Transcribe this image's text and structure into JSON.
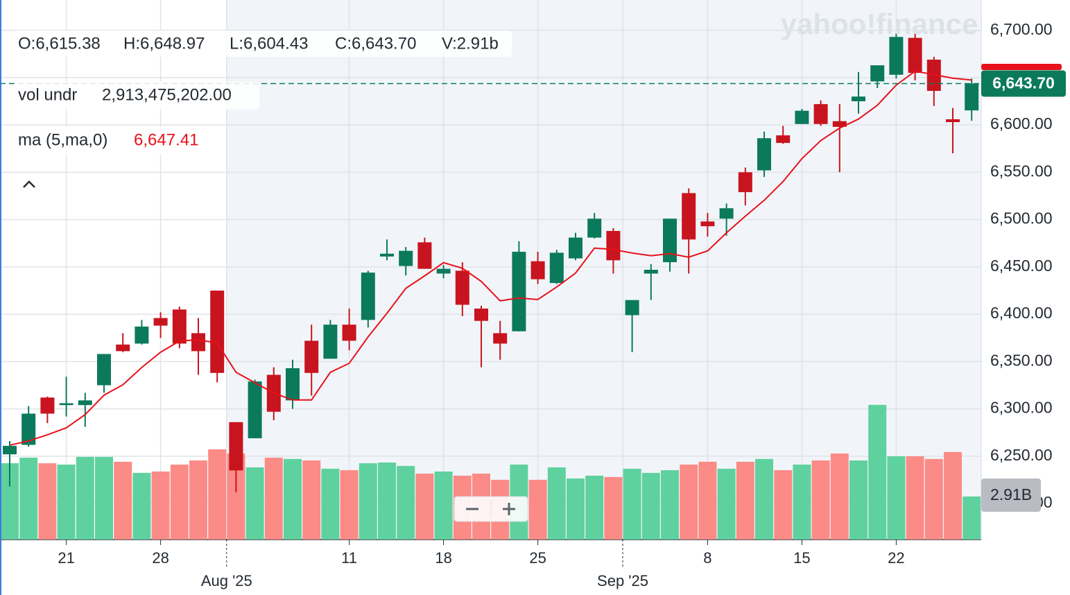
{
  "chart_data": {
    "type": "candlestick",
    "watermark": "yahoo!finance",
    "legend": {
      "ohlcv": [
        "O:6,615.38",
        "H:6,648.97",
        "L:6,604.43",
        "C:6,643.70",
        "V:2.91b"
      ],
      "vol_name": "vol undr",
      "vol_value": "2,913,475,202.00",
      "ma_name": "ma (5,ma,0)",
      "ma_value": "6,647.41"
    },
    "categories": [
      null,
      null,
      null,
      "21",
      null,
      null,
      null,
      null,
      "28",
      null,
      null,
      null,
      null,
      null,
      null,
      null,
      null,
      null,
      "11",
      null,
      null,
      null,
      null,
      "18",
      null,
      null,
      null,
      null,
      "25",
      null,
      null,
      null,
      null,
      null,
      null,
      null,
      null,
      "8",
      null,
      null,
      null,
      null,
      "15",
      null,
      null,
      null,
      null,
      "22",
      null,
      null,
      null,
      null
    ],
    "month_ticks": [
      {
        "value": 11.5,
        "label": "Aug '25"
      },
      {
        "value": 32.5,
        "label": "Sep '25"
      }
    ],
    "open": [
      6252,
      6262,
      6312,
      6304,
      6304,
      6325,
      6368,
      6369,
      6396,
      6405,
      6380,
      6425,
      6286,
      6269,
      6336,
      6309,
      6372,
      6353,
      6389,
      6394,
      6461,
      6451,
      6476,
      6443,
      6446,
      6406,
      6380,
      6382,
      6456,
      6433,
      6459,
      6481,
      6488,
      6399,
      6443,
      6455,
      6528,
      6498,
      6501,
      6550,
      6552,
      6589,
      6601,
      6622,
      6604,
      6625,
      6646,
      6653,
      6692,
      6669,
      6606,
      6615.38
    ],
    "high": [
      6266,
      6303,
      6313,
      6334,
      6317,
      6358,
      6380,
      6394,
      6402,
      6408,
      6396,
      6425,
      6286,
      6331,
      6344,
      6352,
      6389,
      6394,
      6406,
      6446,
      6479,
      6471,
      6481,
      6452,
      6455,
      6409,
      6393,
      6477,
      6466,
      6468,
      6486,
      6507,
      6491,
      6415,
      6453,
      6501,
      6533,
      6507,
      6517,
      6555,
      6593,
      6599,
      6617,
      6626,
      6622,
      6656,
      6663,
      6697,
      6698,
      6672,
      6618,
      6648.97
    ],
    "low": [
      6218,
      6260,
      6285,
      6292,
      6281,
      6317,
      6360,
      6368,
      6375,
      6364,
      6336,
      6328,
      6212,
      6269,
      6288,
      6300,
      6314,
      6353,
      6362,
      6386,
      6457,
      6441,
      6448,
      6438,
      6398,
      6344,
      6352,
      6382,
      6432,
      6432,
      6457,
      6480,
      6443,
      6360,
      6415,
      6445,
      6443,
      6482,
      6483,
      6515,
      6545,
      6580,
      6601,
      6599,
      6550,
      6612,
      6639,
      6649,
      6647,
      6620,
      6570,
      6604.43
    ],
    "close": [
      6261,
      6295,
      6295,
      6306,
      6309,
      6358,
      6361,
      6387,
      6388,
      6369,
      6361,
      6338,
      6235,
      6329,
      6297,
      6343,
      6338,
      6389,
      6372,
      6444,
      6464,
      6467,
      6448,
      6448,
      6410,
      6393,
      6369,
      6466,
      6437,
      6465,
      6481,
      6501,
      6457,
      6415,
      6447,
      6501,
      6479,
      6493,
      6512,
      6529,
      6586,
      6581,
      6615,
      6601,
      6598,
      6630,
      6663,
      6693,
      6655,
      6636,
      6603,
      6643.7
    ],
    "volume": [
      5.16,
      5.54,
      5.16,
      5.07,
      5.59,
      5.59,
      5.26,
      4.51,
      4.6,
      5.07,
      5.35,
      6.1,
      5.82,
      4.88,
      5.54,
      5.45,
      5.35,
      4.79,
      4.69,
      5.16,
      5.21,
      4.98,
      4.46,
      4.6,
      4.32,
      4.46,
      4.04,
      5.07,
      4.04,
      4.88,
      4.13,
      4.32,
      4.23,
      4.79,
      4.51,
      4.69,
      5.07,
      5.26,
      4.79,
      5.26,
      5.45,
      4.69,
      5.07,
      5.35,
      5.82,
      5.35,
      9.11,
      5.63,
      5.63,
      5.45,
      5.92,
      2.91
    ],
    "volume_label": "2.91B",
    "vlim": [
      0,
      36.5
    ],
    "ma": [
      6261.7,
      6266.1,
      6272.7,
      6280.0,
      6294.0,
      6314.5,
      6325.5,
      6343.8,
      6359.9,
      6371.7,
      6373.1,
      6369.5,
      6338.7,
      6327.7,
      6316.7,
      6309.4,
      6309.4,
      6338.7,
      6348.2,
      6376.1,
      6401.0,
      6427.4,
      6440.6,
      6454.5,
      6448.6,
      6434.7,
      6414.2,
      6417.1,
      6415.6,
      6428.8,
      6443.5,
      6469.9,
      6468.4,
      6464.7,
      6461.8,
      6464.0,
      6460.3,
      6466.9,
      6486.0,
      6503.6,
      6520.4,
      6540.2,
      6564.4,
      6583.5,
      6596.7,
      6606.2,
      6620.8,
      6642.1,
      6656.8,
      6653.1,
      6649.4,
      6647.41
    ],
    "last_label": "6,643.70",
    "ylim": [
      6162,
      6732
    ],
    "yticks": [
      {
        "value": 6200,
        "label": "6,200.00"
      },
      {
        "value": 6250,
        "label": "6,250.00"
      },
      {
        "value": 6300,
        "label": "6,300.00"
      },
      {
        "value": 6350,
        "label": "6,350.00"
      },
      {
        "value": 6400,
        "label": "6,400.00"
      },
      {
        "value": 6450,
        "label": "6,450.00"
      },
      {
        "value": 6500,
        "label": "6,500.00"
      },
      {
        "value": 6550,
        "label": "6,550.00"
      },
      {
        "value": 6600,
        "label": "6,600.00"
      },
      {
        "value": 6650,
        "label": "6,650.00"
      },
      {
        "value": 6700,
        "label": "6,700.00"
      }
    ],
    "grid": true,
    "up_color": "#0b7a5c",
    "down_color": "#c8141e",
    "volume_up_color": "#5fd19f",
    "volume_down_color": "#fb8b86",
    "ma_color": "#e8111b"
  }
}
